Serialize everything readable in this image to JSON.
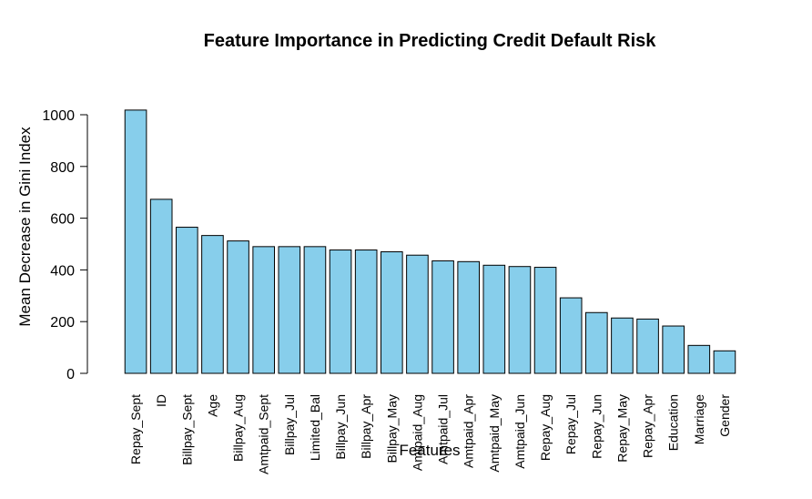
{
  "chart_data": {
    "type": "bar",
    "title": "Feature Importance in Predicting Credit Default Risk",
    "xlabel": "Features",
    "ylabel": "Mean Decrease in Gini Index",
    "categories": [
      "Repay_Sept",
      "ID",
      "Billpay_Sept",
      "Age",
      "Billpay_Aug",
      "Amtpaid_Sept",
      "Billpay_Jul",
      "Limited_Bal",
      "Billpay_Jun",
      "Billpay_Apr",
      "Billpay_May",
      "Amtpaid_Aug",
      "Amtpaid_Jul",
      "Amtpaid_Apr",
      "Amtpaid_May",
      "Amtpaid_Jun",
      "Repay_Aug",
      "Repay_Jul",
      "Repay_Jun",
      "Repay_May",
      "Repay_Apr",
      "Education",
      "Marriage",
      "Gender"
    ],
    "values": [
      1018,
      673,
      565,
      533,
      512,
      490,
      490,
      490,
      477,
      477,
      470,
      457,
      435,
      432,
      418,
      413,
      410,
      292,
      235,
      214,
      210,
      183,
      108,
      87
    ],
    "yticks": [
      "0",
      "200",
      "400",
      "600",
      "800",
      "1000"
    ],
    "ylim": [
      0,
      1000
    ],
    "grid": false,
    "bar_color": "#87CEEB",
    "bar_border_color": "#000000"
  }
}
